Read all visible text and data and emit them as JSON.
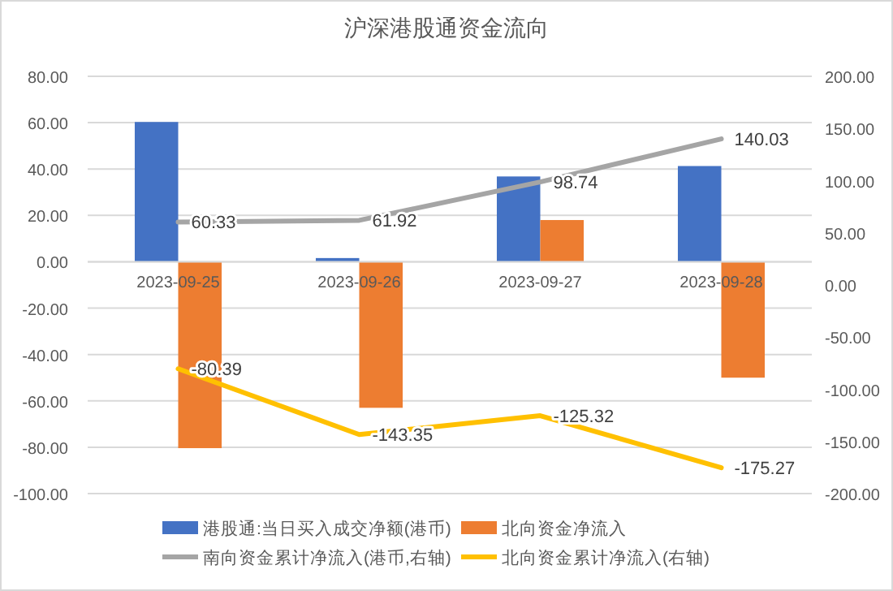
{
  "chart_data": {
    "type": "bar",
    "title": "沪深港股通资金流向",
    "categories": [
      "2023-09-25",
      "2023-09-26",
      "2023-09-27",
      "2023-09-28"
    ],
    "series": [
      {
        "name": "港股通:当日买入成交净额(港币)",
        "color": "#4472c4",
        "values": [
          60.3,
          1.6,
          36.8,
          41.3
        ]
      },
      {
        "name": "北向资金净流入",
        "color": "#ed7d31",
        "values": [
          -80.4,
          -63.0,
          18.0,
          -50.0
        ]
      },
      {
        "name": "南向资金累计净流入(港币,右轴)",
        "color": "#a5a5a5",
        "type": "line",
        "axis": "y2",
        "values": [
          60.33,
          61.92,
          98.74,
          140.03
        ],
        "value_labels": [
          "60.33",
          "61.92",
          "98.74",
          "140.03"
        ]
      },
      {
        "name": "北向资金累计净流入(右轴)",
        "color": "#ffc000",
        "type": "line",
        "axis": "y2",
        "values": [
          -80.39,
          -143.35,
          -125.32,
          -175.27
        ],
        "value_labels": [
          "-80.39",
          "-143.35",
          "-125.32",
          "-175.27"
        ]
      }
    ],
    "ylim": [
      -100,
      80
    ],
    "yticks": [
      {
        "value": -100,
        "label": "-100.00"
      },
      {
        "value": -80,
        "label": "-80.00"
      },
      {
        "value": -60,
        "label": "-60.00"
      },
      {
        "value": -40,
        "label": "-40.00"
      },
      {
        "value": -20,
        "label": "-20.00"
      },
      {
        "value": 0,
        "label": "0.00"
      },
      {
        "value": 20,
        "label": "20.00"
      },
      {
        "value": 40,
        "label": "40.00"
      },
      {
        "value": 60,
        "label": "60.00"
      },
      {
        "value": 80,
        "label": "80.00"
      }
    ],
    "y2lim": [
      -200,
      200
    ],
    "y2ticks": [
      {
        "value": -200,
        "label": "-200.00"
      },
      {
        "value": -150,
        "label": "-150.00"
      },
      {
        "value": -100,
        "label": "-100.00"
      },
      {
        "value": -50,
        "label": "-50.00"
      },
      {
        "value": 0,
        "label": "0.00"
      },
      {
        "value": 50,
        "label": "50.00"
      },
      {
        "value": 100,
        "label": "100.00"
      },
      {
        "value": 150,
        "label": "150.00"
      },
      {
        "value": 200,
        "label": "200.00"
      }
    ],
    "grid": "y",
    "legend": "bottom",
    "marker": "none",
    "line_style": "solid"
  }
}
